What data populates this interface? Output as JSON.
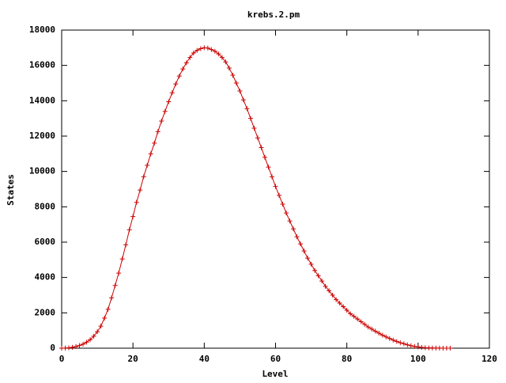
{
  "chart_data": {
    "type": "line",
    "title": "krebs.2.pm",
    "xlabel": "Level",
    "ylabel": "States",
    "xlim": [
      0,
      120
    ],
    "xticks": [
      0,
      20,
      40,
      60,
      80,
      100,
      120
    ],
    "ylim": [
      0,
      18000
    ],
    "yticks": [
      0,
      2000,
      4000,
      6000,
      8000,
      10000,
      12000,
      14000,
      16000,
      18000
    ],
    "marker": "+",
    "series": [
      {
        "color": "#cc0000",
        "x": [
          0,
          1,
          2,
          3,
          4,
          5,
          6,
          7,
          8,
          9,
          10,
          11,
          12,
          13,
          14,
          15,
          16,
          17,
          18,
          19,
          20,
          21,
          22,
          23,
          24,
          25,
          26,
          27,
          28,
          29,
          30,
          31,
          32,
          33,
          34,
          35,
          36,
          37,
          38,
          39,
          40,
          41,
          42,
          43,
          44,
          45,
          46,
          47,
          48,
          49,
          50,
          51,
          52,
          53,
          54,
          55,
          56,
          57,
          58,
          59,
          60,
          61,
          62,
          63,
          64,
          65,
          66,
          67,
          68,
          69,
          70,
          71,
          72,
          73,
          74,
          75,
          76,
          77,
          78,
          79,
          80,
          81,
          82,
          83,
          84,
          85,
          86,
          87,
          88,
          89,
          90,
          91,
          92,
          93,
          94,
          95,
          96,
          97,
          98,
          99,
          100,
          101,
          102,
          103,
          104,
          105,
          106,
          107,
          108,
          109
        ],
        "values": [
          1,
          5,
          20,
          50,
          90,
          150,
          230,
          340,
          480,
          680,
          930,
          1250,
          1700,
          2200,
          2850,
          3550,
          4250,
          5050,
          5850,
          6700,
          7450,
          8250,
          8950,
          9700,
          10350,
          11000,
          11600,
          12250,
          12850,
          13400,
          13950,
          14450,
          14950,
          15400,
          15800,
          16150,
          16450,
          16700,
          16850,
          16950,
          17000,
          16980,
          16900,
          16800,
          16650,
          16450,
          16200,
          15850,
          15450,
          15000,
          14550,
          14050,
          13550,
          13000,
          12450,
          11900,
          11350,
          10800,
          10250,
          9700,
          9150,
          8650,
          8150,
          7650,
          7200,
          6750,
          6300,
          5900,
          5500,
          5100,
          4750,
          4400,
          4100,
          3800,
          3500,
          3250,
          3000,
          2750,
          2550,
          2350,
          2150,
          1950,
          1800,
          1650,
          1500,
          1350,
          1200,
          1080,
          960,
          850,
          740,
          640,
          550,
          460,
          380,
          310,
          250,
          190,
          140,
          100,
          70,
          45,
          30,
          18,
          10,
          6,
          3,
          2,
          1,
          1
        ]
      }
    ]
  }
}
